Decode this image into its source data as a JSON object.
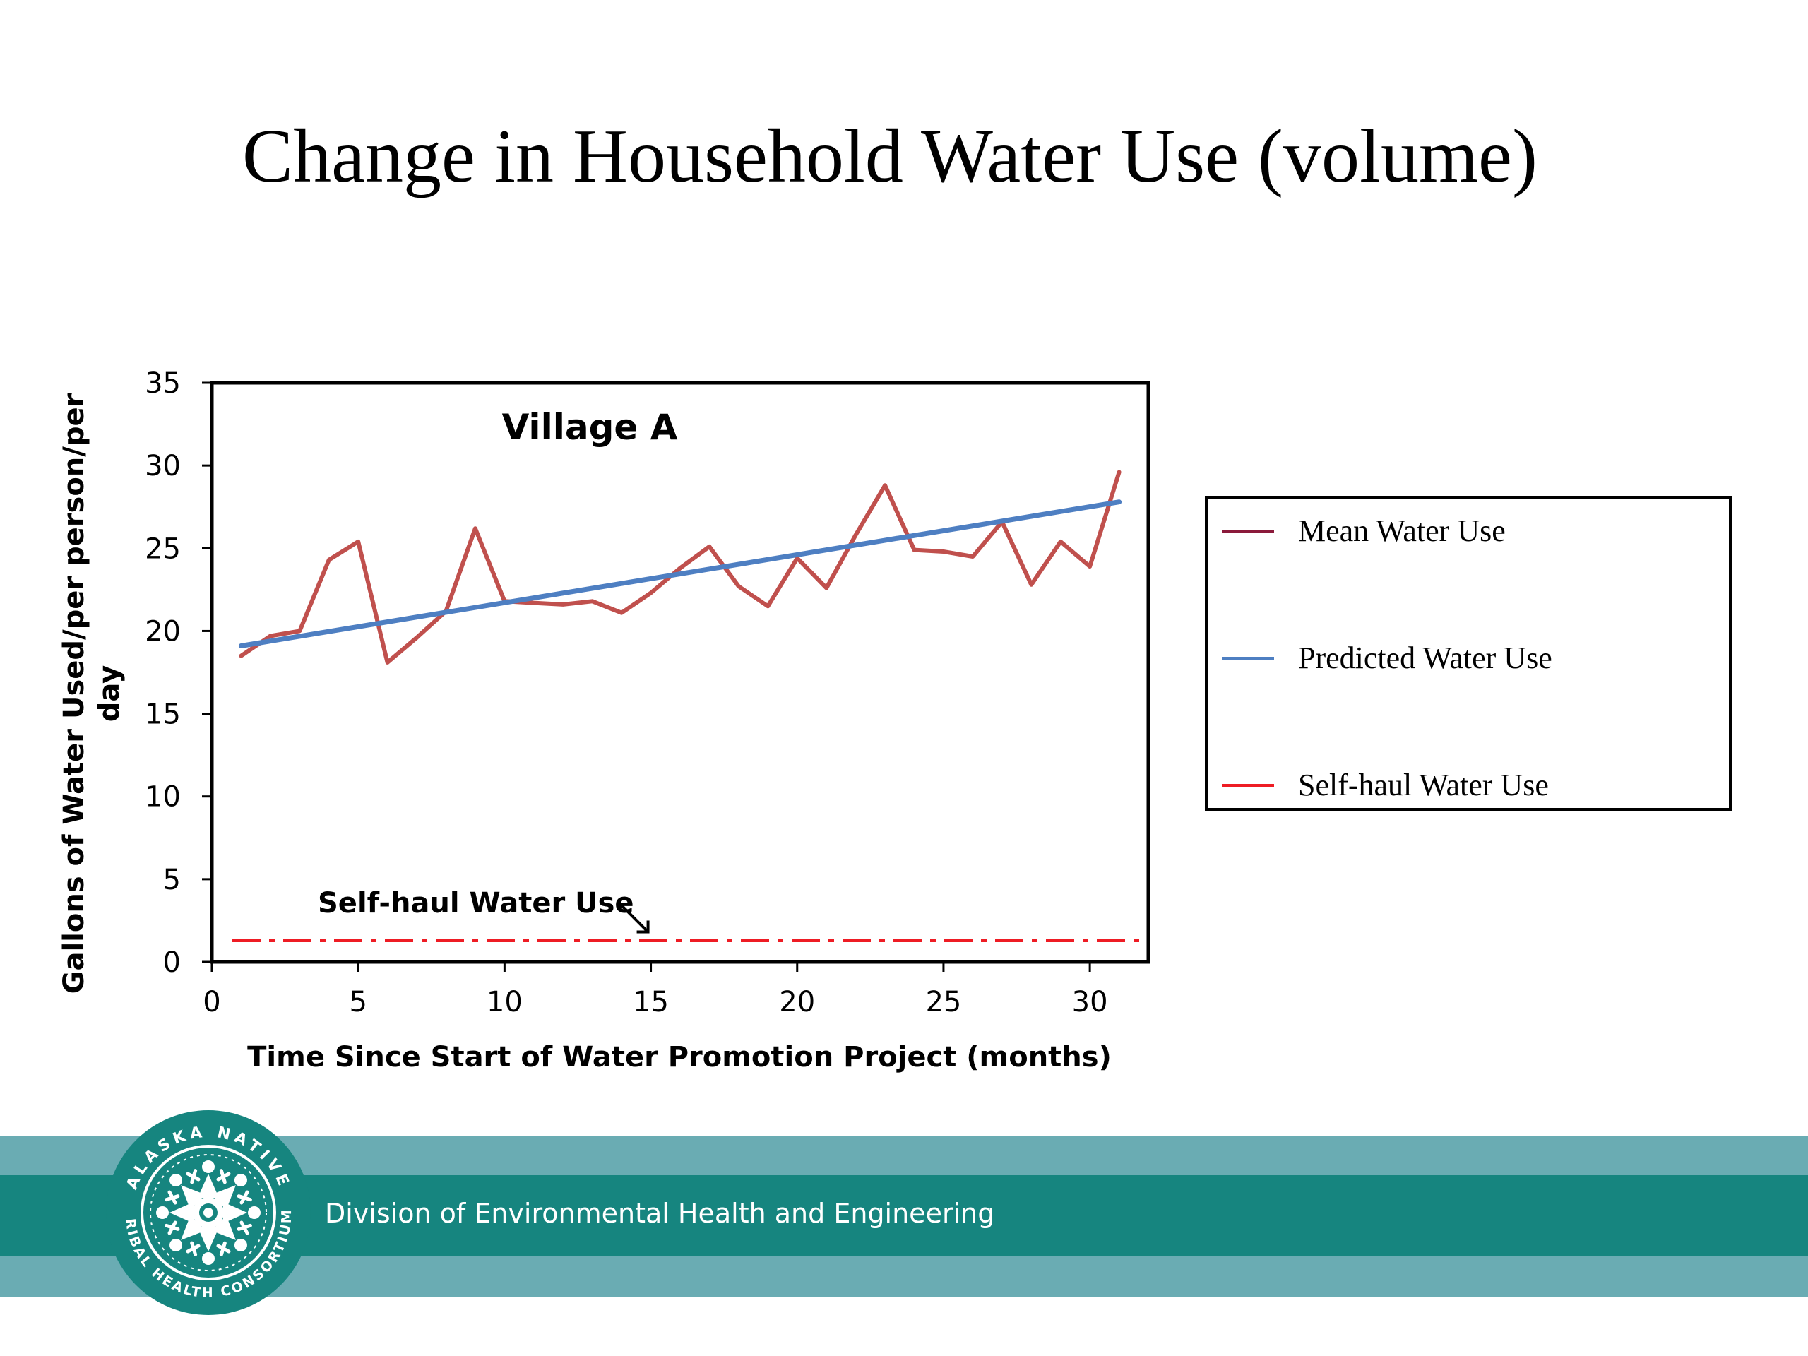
{
  "slide": {
    "title": "Change in Household Water Use (volume)"
  },
  "footer": {
    "org_text": "Division of Environmental Health and Engineering",
    "logo_text_top": "ALASKA NATIVE",
    "logo_text_bottom": "TRIBAL HEALTH CONSORTIUM"
  },
  "legend": {
    "items": [
      {
        "label": "Mean Water Use",
        "color": "#8b1a3b"
      },
      {
        "label": "Predicted Water Use",
        "color": "#4e7fc2"
      },
      {
        "label": "Self-haul Water Use",
        "color": "#ee1c24"
      }
    ]
  },
  "colors": {
    "footer_light": "#6aacb3",
    "footer_dark": "#16857f",
    "observed_line": "#c0504d"
  },
  "chart_data": {
    "type": "line",
    "title": "Village A",
    "xlabel": "Time Since Start of Water Promotion Project (months)",
    "ylabel": "Gallons of Water Used/per person/per day",
    "xlim": [
      0,
      32
    ],
    "ylim": [
      0,
      35
    ],
    "xticks": [
      0,
      5,
      10,
      15,
      20,
      25,
      30
    ],
    "yticks": [
      0,
      5,
      10,
      15,
      20,
      25,
      30,
      35
    ],
    "grid": false,
    "series": [
      {
        "name": "Mean Water Use",
        "color": "#c0504d",
        "x": [
          1,
          2,
          3,
          4,
          5,
          6,
          7,
          8,
          9,
          10,
          11,
          12,
          13,
          14,
          15,
          16,
          17,
          18,
          19,
          20,
          21,
          22,
          23,
          24,
          25,
          26,
          27,
          28,
          29,
          30,
          31
        ],
        "y": [
          18.5,
          19.7,
          20.0,
          24.3,
          25.4,
          18.1,
          19.6,
          21.2,
          26.2,
          21.8,
          21.7,
          21.6,
          21.8,
          21.1,
          22.3,
          23.8,
          25.1,
          22.7,
          21.5,
          24.4,
          22.6,
          25.8,
          28.8,
          24.9,
          24.8,
          24.5,
          26.6,
          22.8,
          25.4,
          23.9,
          29.6
        ]
      },
      {
        "name": "Predicted Water Use",
        "color": "#4e7fc2",
        "x": [
          1,
          31
        ],
        "y": [
          19.1,
          27.8
        ]
      },
      {
        "name": "Self-haul Water Use",
        "color": "#ee1c24",
        "style": "dash-dot",
        "x": [
          0.7,
          32
        ],
        "y": [
          1.3,
          1.3
        ]
      }
    ],
    "annotations": [
      {
        "text": "Self-haul Water Use",
        "points_to": {
          "x": 15,
          "y": 1.3
        }
      }
    ]
  }
}
